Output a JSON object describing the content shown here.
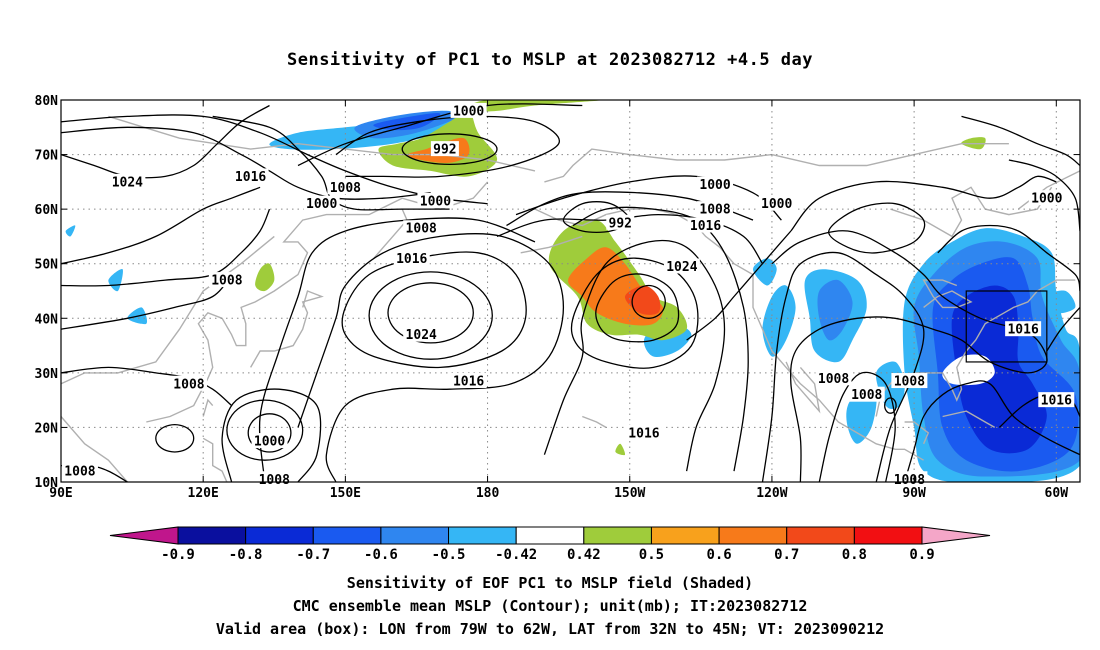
{
  "title": "Sensitivity of PC1 to MSLP at 2023082712 +4.5 day",
  "captions": {
    "line1": "Sensitivity of EOF PC1 to MSLP field (Shaded)",
    "line2": "CMC ensemble mean MSLP (Contour); unit(mb); IT:2023082712",
    "line3": "Valid area (box): LON from 79W to 62W, LAT from 32N to 45N; VT: 2023090212"
  },
  "map": {
    "lon_range": [
      90,
      305
    ],
    "lat_range": [
      10,
      80
    ],
    "x_ticks": [
      {
        "lon": 90,
        "label": "90E"
      },
      {
        "lon": 120,
        "label": "120E"
      },
      {
        "lon": 150,
        "label": "150E"
      },
      {
        "lon": 180,
        "label": "180"
      },
      {
        "lon": 210,
        "label": "150W"
      },
      {
        "lon": 240,
        "label": "120W"
      },
      {
        "lon": 270,
        "label": "90W"
      },
      {
        "lon": 300,
        "label": "60W"
      }
    ],
    "y_ticks": [
      {
        "lat": 10,
        "label": "10N"
      },
      {
        "lat": 20,
        "label": "20N"
      },
      {
        "lat": 30,
        "label": "30N"
      },
      {
        "lat": 40,
        "label": "40N"
      },
      {
        "lat": 50,
        "label": "50N"
      },
      {
        "lat": 60,
        "label": "60N"
      },
      {
        "lat": 70,
        "label": "70N"
      },
      {
        "lat": 80,
        "label": "80N"
      }
    ],
    "valid_box": {
      "lon_min": 281,
      "lon_max": 298,
      "lat_min": 32,
      "lat_max": 45
    },
    "contour_labels": [
      {
        "text": "1024",
        "lon": 104,
        "lat": 65
      },
      {
        "text": "1016",
        "lon": 130,
        "lat": 66
      },
      {
        "text": "1008",
        "lon": 150,
        "lat": 64
      },
      {
        "text": "1000",
        "lon": 145,
        "lat": 61
      },
      {
        "text": "1000",
        "lon": 169,
        "lat": 61.5
      },
      {
        "text": "992",
        "lon": 171,
        "lat": 71
      },
      {
        "text": "1000",
        "lon": 176,
        "lat": 78
      },
      {
        "text": "1008",
        "lon": 166,
        "lat": 56.5
      },
      {
        "text": "1016",
        "lon": 164,
        "lat": 51
      },
      {
        "text": "1008",
        "lon": 125,
        "lat": 47
      },
      {
        "text": "1024",
        "lon": 166,
        "lat": 37
      },
      {
        "text": "992",
        "lon": 208,
        "lat": 57.5
      },
      {
        "text": "1000",
        "lon": 228,
        "lat": 64.5
      },
      {
        "text": "1008",
        "lon": 228,
        "lat": 60
      },
      {
        "text": "1000",
        "lon": 241,
        "lat": 61
      },
      {
        "text": "1016",
        "lon": 226,
        "lat": 57
      },
      {
        "text": "1024",
        "lon": 221,
        "lat": 49.5
      },
      {
        "text": "1016",
        "lon": 176,
        "lat": 28.5
      },
      {
        "text": "1008",
        "lon": 117,
        "lat": 28
      },
      {
        "text": "1000",
        "lon": 134,
        "lat": 17.5
      },
      {
        "text": "1016",
        "lon": 213,
        "lat": 19
      },
      {
        "text": "1008",
        "lon": 94,
        "lat": 12
      },
      {
        "text": "1008",
        "lon": 135,
        "lat": 10.5
      },
      {
        "text": "1008",
        "lon": 253,
        "lat": 29
      },
      {
        "text": "1008",
        "lon": 260,
        "lat": 26
      },
      {
        "text": "1008",
        "lon": 269,
        "lat": 28.5
      },
      {
        "text": "1016",
        "lon": 293,
        "lat": 38
      },
      {
        "text": "1000",
        "lon": 298,
        "lat": 62
      },
      {
        "text": "1016",
        "lon": 300,
        "lat": 25
      },
      {
        "text": "1008",
        "lon": 269,
        "lat": 10.5
      }
    ]
  },
  "colorbar": {
    "labels": [
      "-0.9",
      "-0.8",
      "-0.7",
      "-0.6",
      "-0.5",
      "-0.42",
      "0.42",
      "0.5",
      "0.6",
      "0.7",
      "0.8",
      "0.9"
    ],
    "low_overflow_color": "#c0168c",
    "high_overflow_color": "#f4a6c8",
    "colors": [
      "#0a0f9e",
      "#0a2ad6",
      "#1a5af0",
      "#2f86f0",
      "#35b6f5",
      "#ffffff",
      "#9fcc3b",
      "#f8a11c",
      "#f77a1a",
      "#f2491a",
      "#f20f12"
    ]
  },
  "colors": {
    "contour": "#000000",
    "coastline": "#b0b0b0",
    "grid": "#8a8a8a"
  }
}
